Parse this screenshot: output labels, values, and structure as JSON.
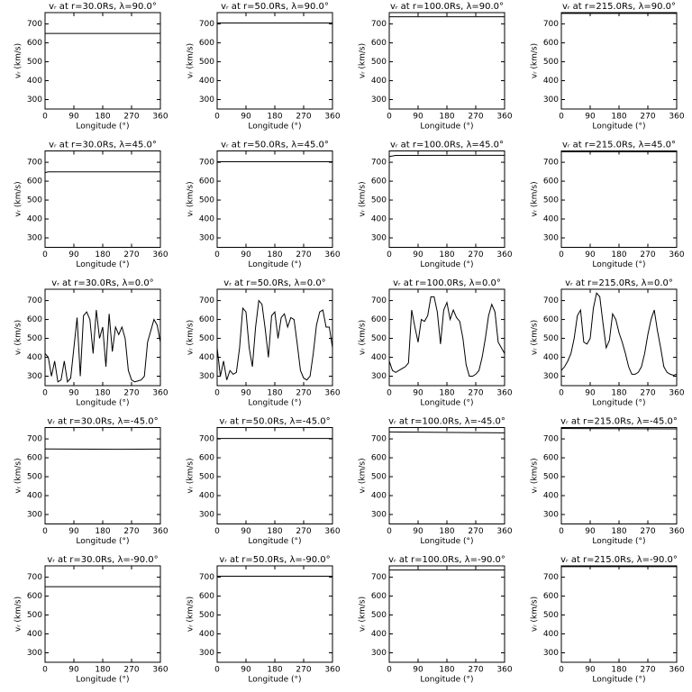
{
  "chart_data": [
    {
      "type": "line",
      "title": "vᵣ at r=30.0Rs, λ=90.0°",
      "xlabel": "Longitude (°)",
      "ylabel": "vᵣ (km/s)",
      "x": [
        0,
        360
      ],
      "values": [
        650,
        650
      ],
      "color": "#000000",
      "xlim": [
        0,
        360
      ],
      "ylim": [
        250,
        760
      ],
      "xticks": [
        0,
        90,
        180,
        270,
        360
      ],
      "yticks": [
        300,
        400,
        500,
        600,
        700
      ]
    },
    {
      "type": "line",
      "title": "vᵣ at r=50.0Rs, λ=90.0°",
      "xlabel": "Longitude (°)",
      "ylabel": "vᵣ (km/s)",
      "x": [
        0,
        360
      ],
      "values": [
        705,
        705
      ],
      "color": "#000000",
      "xlim": [
        0,
        360
      ],
      "ylim": [
        250,
        760
      ],
      "xticks": [
        0,
        90,
        180,
        270,
        360
      ],
      "yticks": [
        300,
        400,
        500,
        600,
        700
      ]
    },
    {
      "type": "line",
      "title": "vᵣ at r=100.0Rs, λ=90.0°",
      "xlabel": "Longitude (°)",
      "ylabel": "vᵣ (km/s)",
      "x": [
        0,
        360
      ],
      "values": [
        738,
        738
      ],
      "color": "#000000",
      "xlim": [
        0,
        360
      ],
      "ylim": [
        250,
        760
      ],
      "xticks": [
        0,
        90,
        180,
        270,
        360
      ],
      "yticks": [
        300,
        400,
        500,
        600,
        700
      ]
    },
    {
      "type": "line",
      "title": "vᵣ at r=215.0Rs, λ=90.0°",
      "xlabel": "Longitude (°)",
      "ylabel": "vᵣ (km/s)",
      "x": [
        0,
        360
      ],
      "values": [
        756,
        756
      ],
      "color": "#000000",
      "xlim": [
        0,
        360
      ],
      "ylim": [
        250,
        760
      ],
      "xticks": [
        0,
        90,
        180,
        270,
        360
      ],
      "yticks": [
        300,
        400,
        500,
        600,
        700
      ]
    },
    {
      "type": "line",
      "title": "vᵣ at r=30.0Rs, λ=45.0°",
      "xlabel": "Longitude (°)",
      "ylabel": "vᵣ (km/s)",
      "x": [
        0,
        10,
        360
      ],
      "values": [
        645,
        649,
        649
      ],
      "color": "#000000",
      "xlim": [
        0,
        360
      ],
      "ylim": [
        250,
        760
      ],
      "xticks": [
        0,
        90,
        180,
        270,
        360
      ],
      "yticks": [
        300,
        400,
        500,
        600,
        700
      ]
    },
    {
      "type": "line",
      "title": "vᵣ at r=50.0Rs, λ=45.0°",
      "xlabel": "Longitude (°)",
      "ylabel": "vᵣ (km/s)",
      "x": [
        0,
        360
      ],
      "values": [
        703,
        703
      ],
      "color": "#000000",
      "xlim": [
        0,
        360
      ],
      "ylim": [
        250,
        760
      ],
      "xticks": [
        0,
        90,
        180,
        270,
        360
      ],
      "yticks": [
        300,
        400,
        500,
        600,
        700
      ]
    },
    {
      "type": "line",
      "title": "vᵣ at r=100.0Rs, λ=45.0°",
      "xlabel": "Longitude (°)",
      "ylabel": "vᵣ (km/s)",
      "x": [
        0,
        20,
        360
      ],
      "values": [
        730,
        736,
        737
      ],
      "color": "#000000",
      "xlim": [
        0,
        360
      ],
      "ylim": [
        250,
        760
      ],
      "xticks": [
        0,
        90,
        180,
        270,
        360
      ],
      "yticks": [
        300,
        400,
        500,
        600,
        700
      ]
    },
    {
      "type": "line",
      "title": "vᵣ at r=215.0Rs, λ=45.0°",
      "xlabel": "Longitude (°)",
      "ylabel": "vᵣ (km/s)",
      "x": [
        0,
        360
      ],
      "values": [
        755,
        755
      ],
      "color": "#000000",
      "xlim": [
        0,
        360
      ],
      "ylim": [
        250,
        760
      ],
      "xticks": [
        0,
        90,
        180,
        270,
        360
      ],
      "yticks": [
        300,
        400,
        500,
        600,
        700
      ]
    },
    {
      "type": "line",
      "title": "vᵣ at r=30.0Rs, λ=0.0°",
      "xlabel": "Longitude (°)",
      "ylabel": "vᵣ (km/s)",
      "x": [
        0,
        10,
        20,
        30,
        40,
        50,
        60,
        70,
        80,
        90,
        100,
        110,
        120,
        130,
        140,
        150,
        160,
        170,
        180,
        190,
        200,
        210,
        220,
        230,
        240,
        250,
        260,
        270,
        280,
        290,
        300,
        310,
        320,
        330,
        340,
        350,
        360
      ],
      "values": [
        420,
        400,
        300,
        380,
        270,
        280,
        380,
        270,
        290,
        450,
        610,
        300,
        620,
        640,
        600,
        420,
        650,
        500,
        560,
        350,
        630,
        430,
        560,
        520,
        560,
        500,
        330,
        280,
        270,
        275,
        280,
        300,
        480,
        540,
        600,
        570,
        480
      ],
      "color": "#000000",
      "xlim": [
        0,
        360
      ],
      "ylim": [
        250,
        760
      ],
      "xticks": [
        0,
        90,
        180,
        270,
        360
      ],
      "yticks": [
        300,
        400,
        500,
        600,
        700
      ]
    },
    {
      "type": "line",
      "title": "vᵣ at r=50.0Rs, λ=0.0°",
      "xlabel": "Longitude (°)",
      "ylabel": "vᵣ (km/s)",
      "x": [
        0,
        10,
        20,
        30,
        40,
        50,
        60,
        70,
        80,
        90,
        100,
        110,
        120,
        130,
        140,
        150,
        160,
        170,
        180,
        190,
        200,
        210,
        220,
        230,
        240,
        250,
        260,
        270,
        280,
        290,
        300,
        310,
        320,
        330,
        340,
        350,
        360
      ],
      "values": [
        450,
        300,
        380,
        280,
        330,
        310,
        320,
        450,
        660,
        640,
        450,
        350,
        560,
        700,
        680,
        550,
        400,
        620,
        640,
        500,
        610,
        630,
        560,
        610,
        600,
        470,
        330,
        290,
        280,
        300,
        420,
        570,
        640,
        650,
        560,
        560,
        450
      ],
      "color": "#000000",
      "xlim": [
        0,
        360
      ],
      "ylim": [
        250,
        760
      ],
      "xticks": [
        0,
        90,
        180,
        270,
        360
      ],
      "yticks": [
        300,
        400,
        500,
        600,
        700
      ]
    },
    {
      "type": "line",
      "title": "vᵣ at r=100.0Rs, λ=0.0°",
      "xlabel": "Longitude (°)",
      "ylabel": "vᵣ (km/s)",
      "x": [
        0,
        10,
        20,
        30,
        40,
        50,
        60,
        70,
        80,
        90,
        100,
        110,
        120,
        130,
        140,
        150,
        160,
        170,
        180,
        190,
        200,
        210,
        220,
        230,
        240,
        250,
        260,
        270,
        280,
        290,
        300,
        310,
        320,
        330,
        340,
        350,
        360
      ],
      "values": [
        380,
        330,
        320,
        330,
        340,
        350,
        370,
        650,
        560,
        480,
        600,
        590,
        620,
        720,
        720,
        640,
        470,
        650,
        690,
        600,
        650,
        610,
        590,
        500,
        360,
        300,
        300,
        310,
        330,
        400,
        500,
        620,
        680,
        640,
        480,
        450,
        420
      ],
      "color": "#000000",
      "xlim": [
        0,
        360
      ],
      "ylim": [
        250,
        760
      ],
      "xticks": [
        0,
        90,
        180,
        270,
        360
      ],
      "yticks": [
        300,
        400,
        500,
        600,
        700
      ]
    },
    {
      "type": "line",
      "title": "vᵣ at r=215.0Rs, λ=0.0°",
      "xlabel": "Longitude (°)",
      "ylabel": "vᵣ (km/s)",
      "x": [
        0,
        10,
        20,
        30,
        40,
        50,
        60,
        70,
        80,
        90,
        100,
        110,
        120,
        130,
        140,
        150,
        160,
        170,
        180,
        190,
        200,
        210,
        220,
        230,
        240,
        250,
        260,
        270,
        280,
        290,
        300,
        310,
        320,
        330,
        340,
        350,
        360
      ],
      "values": [
        330,
        350,
        380,
        420,
        500,
        620,
        650,
        480,
        470,
        500,
        660,
        740,
        720,
        580,
        450,
        490,
        630,
        600,
        530,
        480,
        420,
        350,
        310,
        310,
        320,
        350,
        420,
        520,
        600,
        650,
        540,
        450,
        350,
        320,
        310,
        305,
        310
      ],
      "color": "#000000",
      "xlim": [
        0,
        360
      ],
      "ylim": [
        250,
        760
      ],
      "xticks": [
        0,
        90,
        180,
        270,
        360
      ],
      "yticks": [
        300,
        400,
        500,
        600,
        700
      ]
    },
    {
      "type": "line",
      "title": "vᵣ at r=30.0Rs, λ=-45.0°",
      "xlabel": "Longitude (°)",
      "ylabel": "vᵣ (km/s)",
      "x": [
        0,
        240,
        360
      ],
      "values": [
        647,
        645,
        646
      ],
      "color": "#000000",
      "xlim": [
        0,
        360
      ],
      "ylim": [
        250,
        760
      ],
      "xticks": [
        0,
        90,
        180,
        270,
        360
      ],
      "yticks": [
        300,
        400,
        500,
        600,
        700
      ]
    },
    {
      "type": "line",
      "title": "vᵣ at r=50.0Rs, λ=-45.0°",
      "xlabel": "Longitude (°)",
      "ylabel": "vᵣ (km/s)",
      "x": [
        0,
        360
      ],
      "values": [
        702,
        702
      ],
      "color": "#000000",
      "xlim": [
        0,
        360
      ],
      "ylim": [
        250,
        760
      ],
      "xticks": [
        0,
        90,
        180,
        270,
        360
      ],
      "yticks": [
        300,
        400,
        500,
        600,
        700
      ]
    },
    {
      "type": "line",
      "title": "vᵣ at r=100.0Rs, λ=-45.0°",
      "xlabel": "Longitude (°)",
      "ylabel": "vᵣ (km/s)",
      "x": [
        0,
        360
      ],
      "values": [
        737,
        732
      ],
      "color": "#000000",
      "xlim": [
        0,
        360
      ],
      "ylim": [
        250,
        760
      ],
      "xticks": [
        0,
        90,
        180,
        270,
        360
      ],
      "yticks": [
        300,
        400,
        500,
        600,
        700
      ]
    },
    {
      "type": "line",
      "title": "vᵣ at r=215.0Rs, λ=-45.0°",
      "xlabel": "Longitude (°)",
      "ylabel": "vᵣ (km/s)",
      "x": [
        0,
        360
      ],
      "values": [
        755,
        753
      ],
      "color": "#000000",
      "xlim": [
        0,
        360
      ],
      "ylim": [
        250,
        760
      ],
      "xticks": [
        0,
        90,
        180,
        270,
        360
      ],
      "yticks": [
        300,
        400,
        500,
        600,
        700
      ]
    },
    {
      "type": "line",
      "title": "vᵣ at r=30.0Rs, λ=-90.0°",
      "xlabel": "Longitude (°)",
      "ylabel": "vᵣ (km/s)",
      "x": [
        0,
        360
      ],
      "values": [
        650,
        650
      ],
      "color": "#000000",
      "xlim": [
        0,
        360
      ],
      "ylim": [
        250,
        760
      ],
      "xticks": [
        0,
        90,
        180,
        270,
        360
      ],
      "yticks": [
        300,
        400,
        500,
        600,
        700
      ]
    },
    {
      "type": "line",
      "title": "vᵣ at r=50.0Rs, λ=-90.0°",
      "xlabel": "Longitude (°)",
      "ylabel": "vᵣ (km/s)",
      "x": [
        0,
        360
      ],
      "values": [
        705,
        705
      ],
      "color": "#000000",
      "xlim": [
        0,
        360
      ],
      "ylim": [
        250,
        760
      ],
      "xticks": [
        0,
        90,
        180,
        270,
        360
      ],
      "yticks": [
        300,
        400,
        500,
        600,
        700
      ]
    },
    {
      "type": "line",
      "title": "vᵣ at r=100.0Rs, λ=-90.0°",
      "xlabel": "Longitude (°)",
      "ylabel": "vᵣ (km/s)",
      "x": [
        0,
        360
      ],
      "values": [
        738,
        738
      ],
      "color": "#000000",
      "xlim": [
        0,
        360
      ],
      "ylim": [
        250,
        760
      ],
      "xticks": [
        0,
        90,
        180,
        270,
        360
      ],
      "yticks": [
        300,
        400,
        500,
        600,
        700
      ]
    },
    {
      "type": "line",
      "title": "vᵣ at r=215.0Rs, λ=-90.0°",
      "xlabel": "Longitude (°)",
      "ylabel": "vᵣ (km/s)",
      "x": [
        0,
        360
      ],
      "values": [
        756,
        756
      ],
      "color": "#000000",
      "xlim": [
        0,
        360
      ],
      "ylim": [
        250,
        760
      ],
      "xticks": [
        0,
        90,
        180,
        270,
        360
      ],
      "yticks": [
        300,
        400,
        500,
        600,
        700
      ]
    }
  ]
}
